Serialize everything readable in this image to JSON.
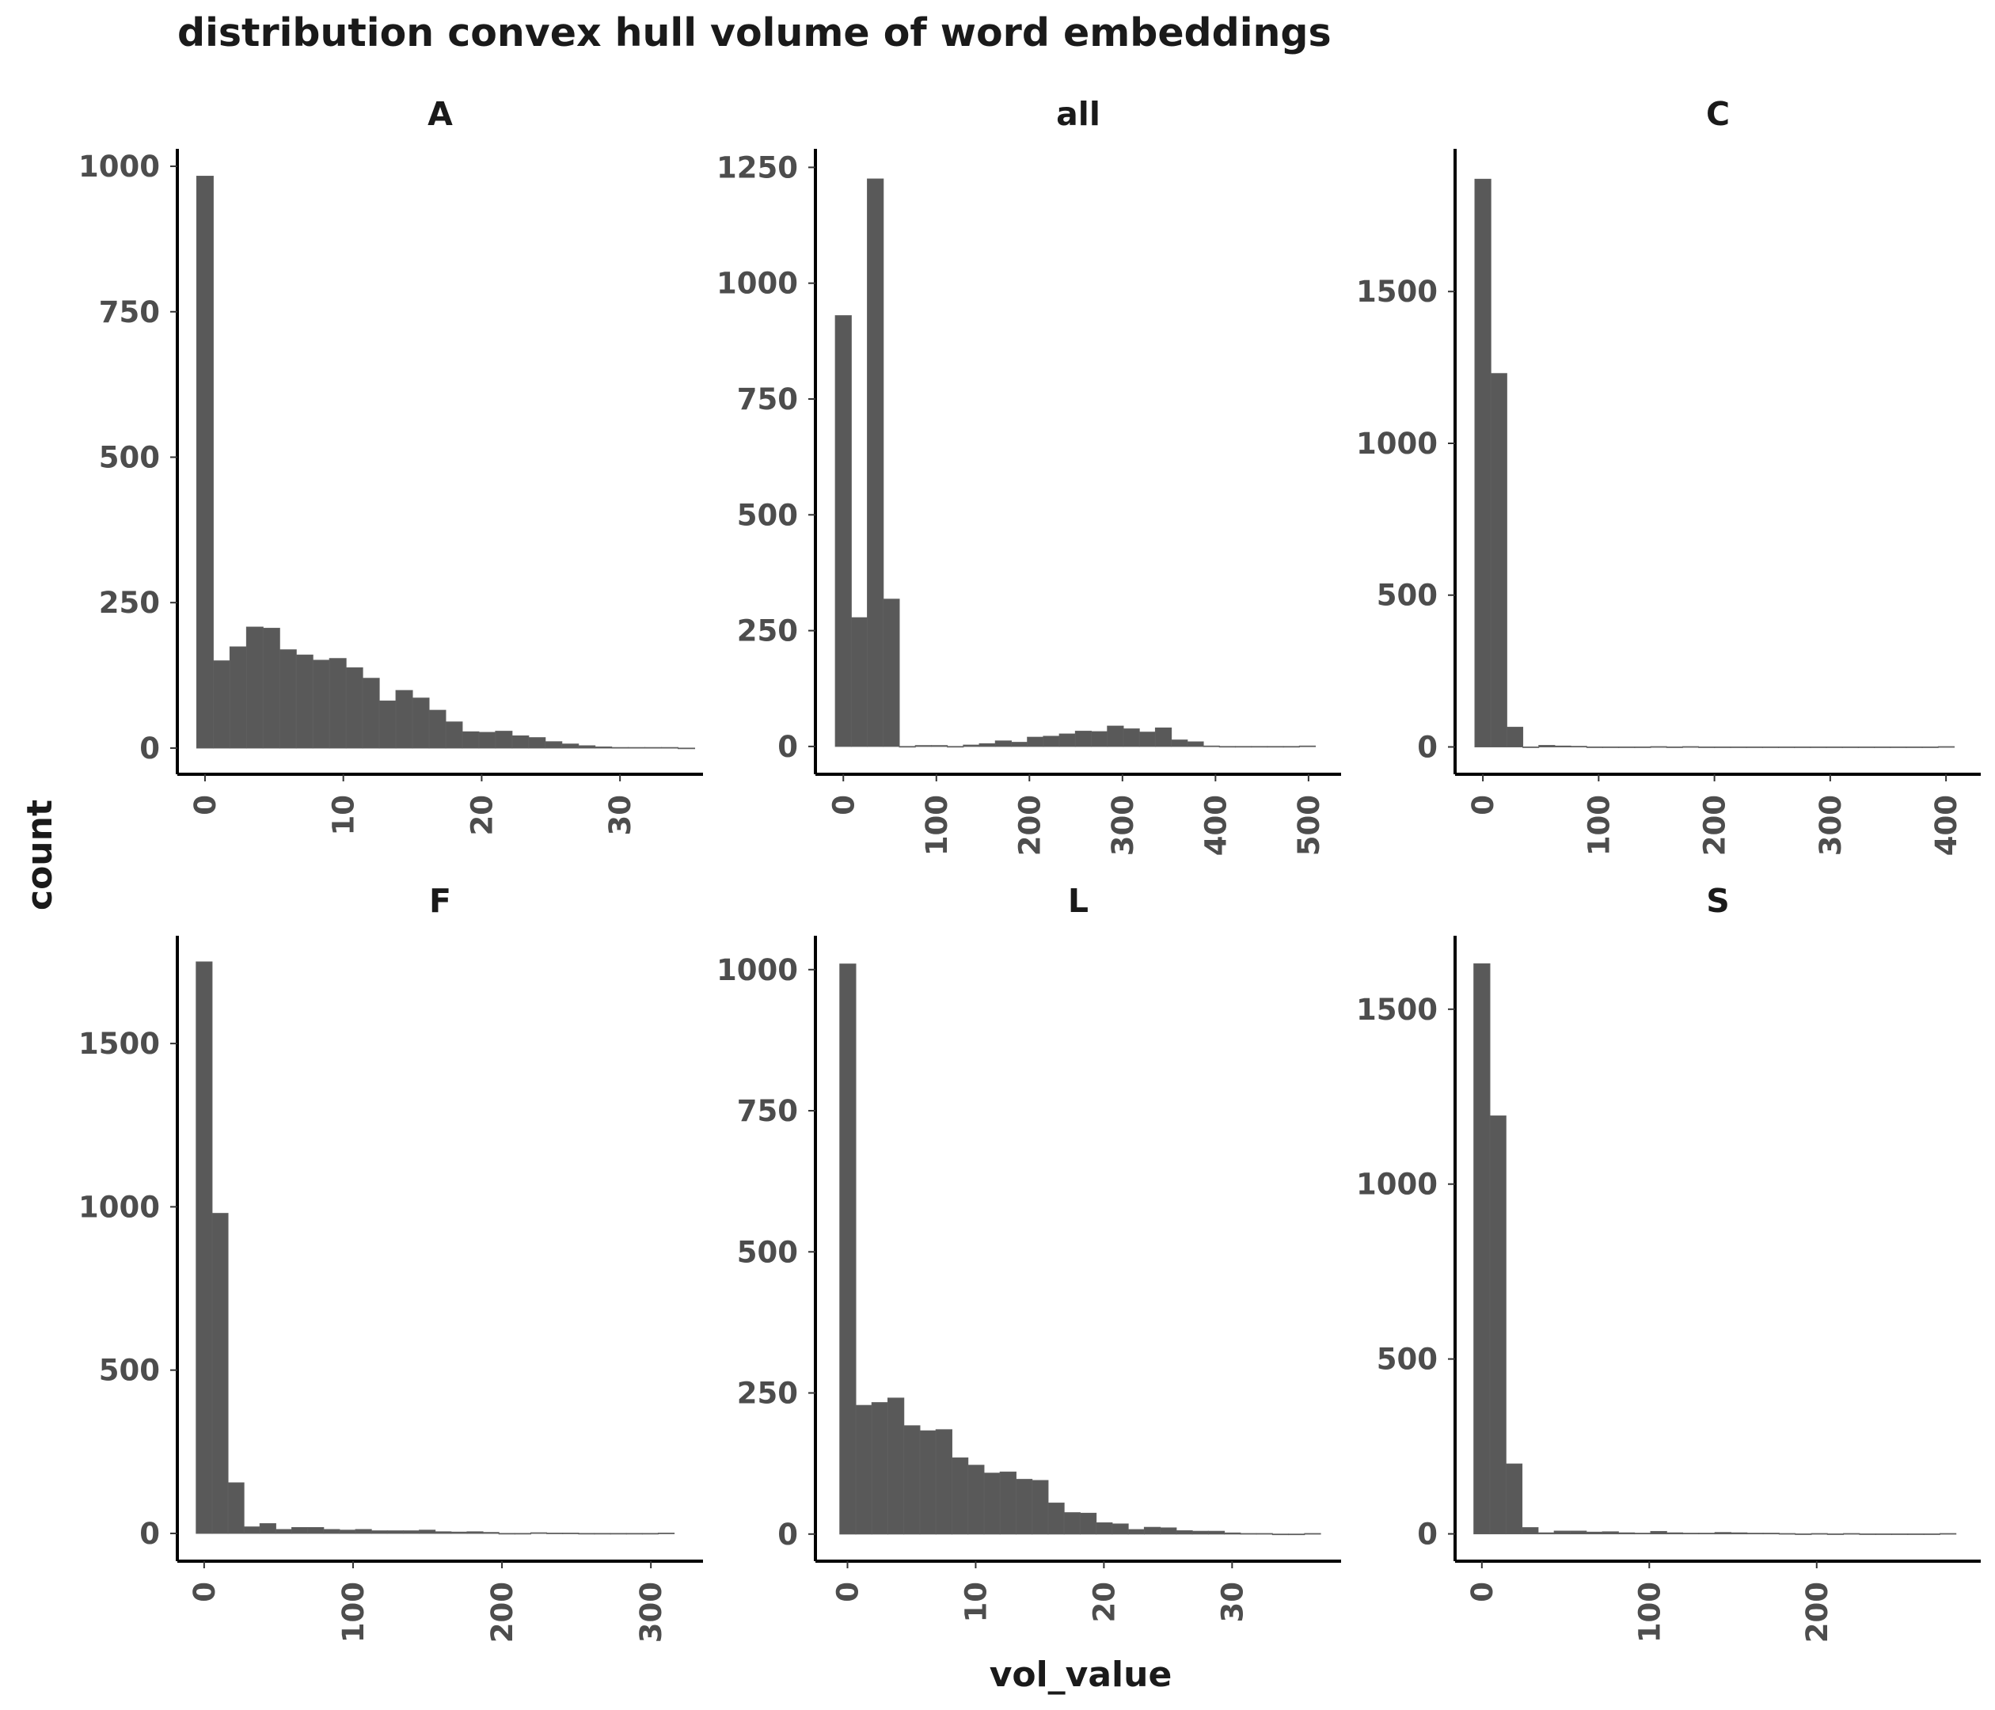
{
  "chart_data": {
    "type": "bar",
    "title": "distribution convex hull volume of word embeddings",
    "xlabel": "vol_value",
    "ylabel": "count",
    "colors": {
      "bar": "#595959",
      "axis": "#000000",
      "tick_text": "#4d4d4d",
      "title_text": "#1a1a1a"
    },
    "panels": [
      {
        "label": "A",
        "bin_start": -0.6,
        "bin_width": 1.2,
        "counts": [
          983,
          150,
          174,
          208,
          206,
          169,
          160,
          151,
          154,
          138,
          120,
          81,
          99,
          86,
          65,
          45,
          28,
          27,
          29,
          21,
          18,
          11,
          7,
          4,
          2,
          1,
          1,
          1,
          1,
          0
        ],
        "xlim": [
          -2,
          36
        ],
        "ylim": [
          -45,
          1030
        ],
        "xticks": [
          0,
          10,
          20,
          30
        ],
        "yticks": [
          0,
          250,
          500,
          750,
          1000
        ]
      },
      {
        "label": "all",
        "bin_start": -8.6,
        "bin_width": 17.2,
        "counts": [
          930,
          278,
          1225,
          318,
          0,
          2,
          2,
          0,
          3,
          6,
          12,
          9,
          20,
          22,
          27,
          33,
          32,
          44,
          38,
          31,
          40,
          14,
          10,
          1,
          0,
          0,
          0,
          0,
          0,
          1
        ],
        "xlim": [
          -30,
          535
        ],
        "ylim": [
          -60,
          1290
        ],
        "xticks": [
          0,
          100,
          200,
          300,
          400,
          500
        ],
        "yticks": [
          0,
          250,
          500,
          750,
          1000,
          1250
        ]
      },
      {
        "label": "C",
        "bin_start": -6.9,
        "bin_width": 13.8,
        "counts": [
          1870,
          1230,
          65,
          0,
          5,
          3,
          2,
          0,
          0,
          0,
          0,
          1,
          0,
          1,
          0,
          0,
          0,
          0,
          0,
          0,
          0,
          0,
          0,
          0,
          0,
          0,
          0,
          0,
          0,
          1
        ],
        "xlim": [
          -24,
          430
        ],
        "ylim": [
          -90,
          1970
        ],
        "xticks": [
          0,
          100,
          200,
          300,
          400
        ],
        "yticks": [
          0,
          500,
          1000,
          1500
        ]
      },
      {
        "label": "F",
        "bin_start": -5.35,
        "bin_width": 10.7,
        "counts": [
          1750,
          980,
          155,
          20,
          30,
          12,
          18,
          18,
          12,
          10,
          12,
          8,
          8,
          8,
          10,
          5,
          4,
          5,
          3,
          0,
          0,
          2,
          1,
          1,
          0,
          0,
          0,
          0,
          0,
          1
        ],
        "xlim": [
          -18,
          335
        ],
        "ylim": [
          -85,
          1830
        ],
        "xticks": [
          0,
          100,
          200,
          300
        ],
        "yticks": [
          0,
          500,
          1000,
          1500
        ]
      },
      {
        "label": "L",
        "bin_start": -0.6,
        "bin_width": 1.25,
        "counts": [
          1010,
          228,
          233,
          241,
          192,
          183,
          185,
          135,
          122,
          108,
          110,
          97,
          95,
          55,
          38,
          37,
          20,
          18,
          8,
          12,
          11,
          6,
          5,
          5,
          2,
          1,
          1,
          0,
          0,
          1
        ],
        "xlim": [
          -2.5,
          38.5
        ],
        "ylim": [
          -48,
          1060
        ],
        "xticks": [
          0,
          10,
          20,
          30
        ],
        "yticks": [
          0,
          250,
          500,
          750,
          1000
        ]
      },
      {
        "label": "S",
        "bin_start": -4.8,
        "bin_width": 9.6,
        "counts": [
          1630,
          1195,
          200,
          18,
          3,
          8,
          8,
          5,
          6,
          3,
          2,
          7,
          3,
          2,
          2,
          4,
          3,
          2,
          2,
          1,
          0,
          1,
          0,
          1,
          0,
          0,
          0,
          0,
          0,
          1
        ],
        "xlim": [
          -16,
          298
        ],
        "ylim": [
          -78,
          1710
        ],
        "xticks": [
          0,
          100,
          200
        ],
        "yticks": [
          0,
          500,
          1000,
          1500
        ]
      }
    ]
  }
}
